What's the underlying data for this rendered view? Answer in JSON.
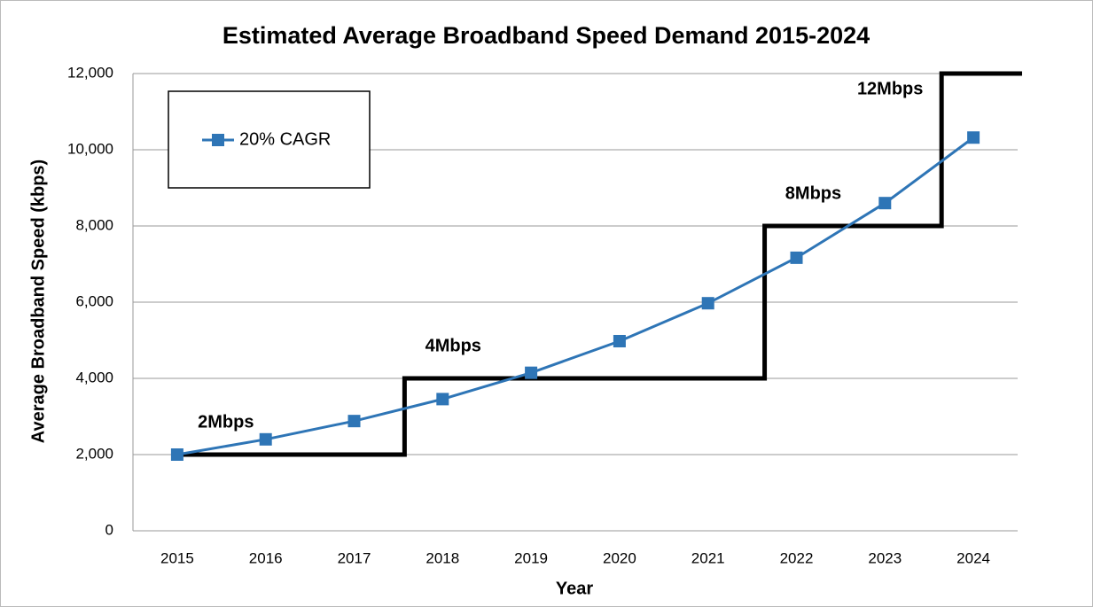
{
  "chart_data": {
    "type": "line",
    "title": "Estimated Average Broadband Speed Demand 2015-2024",
    "xlabel": "Year",
    "ylabel": "Average Broadband Speed (kbps)",
    "categories": [
      "2015",
      "2016",
      "2017",
      "2018",
      "2019",
      "2020",
      "2021",
      "2022",
      "2023",
      "2024"
    ],
    "series": [
      {
        "name": "20% CAGR",
        "color": "#2e75b6",
        "values": [
          2000,
          2400,
          2880,
          3456,
          4147,
          4977,
          5972,
          7166,
          8600,
          10320
        ]
      }
    ],
    "tiers": [
      {
        "label": "2Mbps",
        "value": 2000,
        "x": [
          0,
          2.57
        ]
      },
      {
        "label": "4Mbps",
        "value": 4000,
        "x": [
          2.57,
          6.64
        ]
      },
      {
        "label": "8Mbps",
        "value": 8000,
        "x": [
          6.64,
          8.64
        ]
      },
      {
        "label": "12Mbps",
        "value": 12000,
        "x": [
          8.64,
          9.55
        ]
      }
    ],
    "tier_color": "#000000",
    "ylim": [
      0,
      12000
    ],
    "yticks": [
      0,
      {
        "value": 2000,
        "label": "2,000"
      },
      {
        "value": 4000,
        "label": "4,000"
      },
      {
        "value": 6000,
        "label": "6,000"
      },
      {
        "value": 8000,
        "label": "8,000"
      },
      {
        "value": 10000,
        "label": "10,000"
      },
      {
        "value": 12000,
        "label": "12,000"
      }
    ],
    "grid": true,
    "legend": "upper left"
  }
}
